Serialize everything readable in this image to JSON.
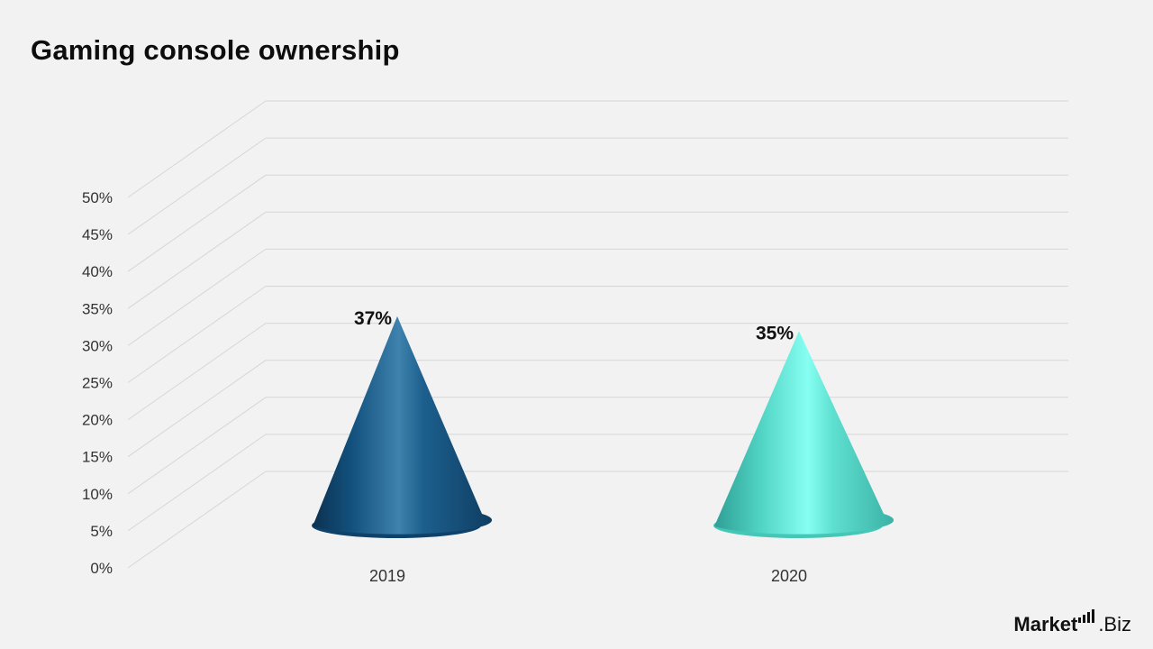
{
  "title": "Gaming console ownership",
  "logo": {
    "brand": "Market",
    "suffix": ".Biz"
  },
  "colors": {
    "series_2019": "#1a5f8c",
    "series_2020": "#5fe0d0"
  },
  "chart_data": {
    "type": "bar",
    "shape": "cone",
    "title": "Gaming console ownership",
    "categories": [
      "2019",
      "2020"
    ],
    "values": [
      37,
      35
    ],
    "data_labels": [
      "37%",
      "35%"
    ],
    "y_ticks": [
      "0%",
      "5%",
      "10%",
      "15%",
      "20%",
      "25%",
      "30%",
      "35%",
      "40%",
      "45%",
      "50%"
    ],
    "ylim": [
      0,
      50
    ],
    "grid": true,
    "legend": "none"
  }
}
